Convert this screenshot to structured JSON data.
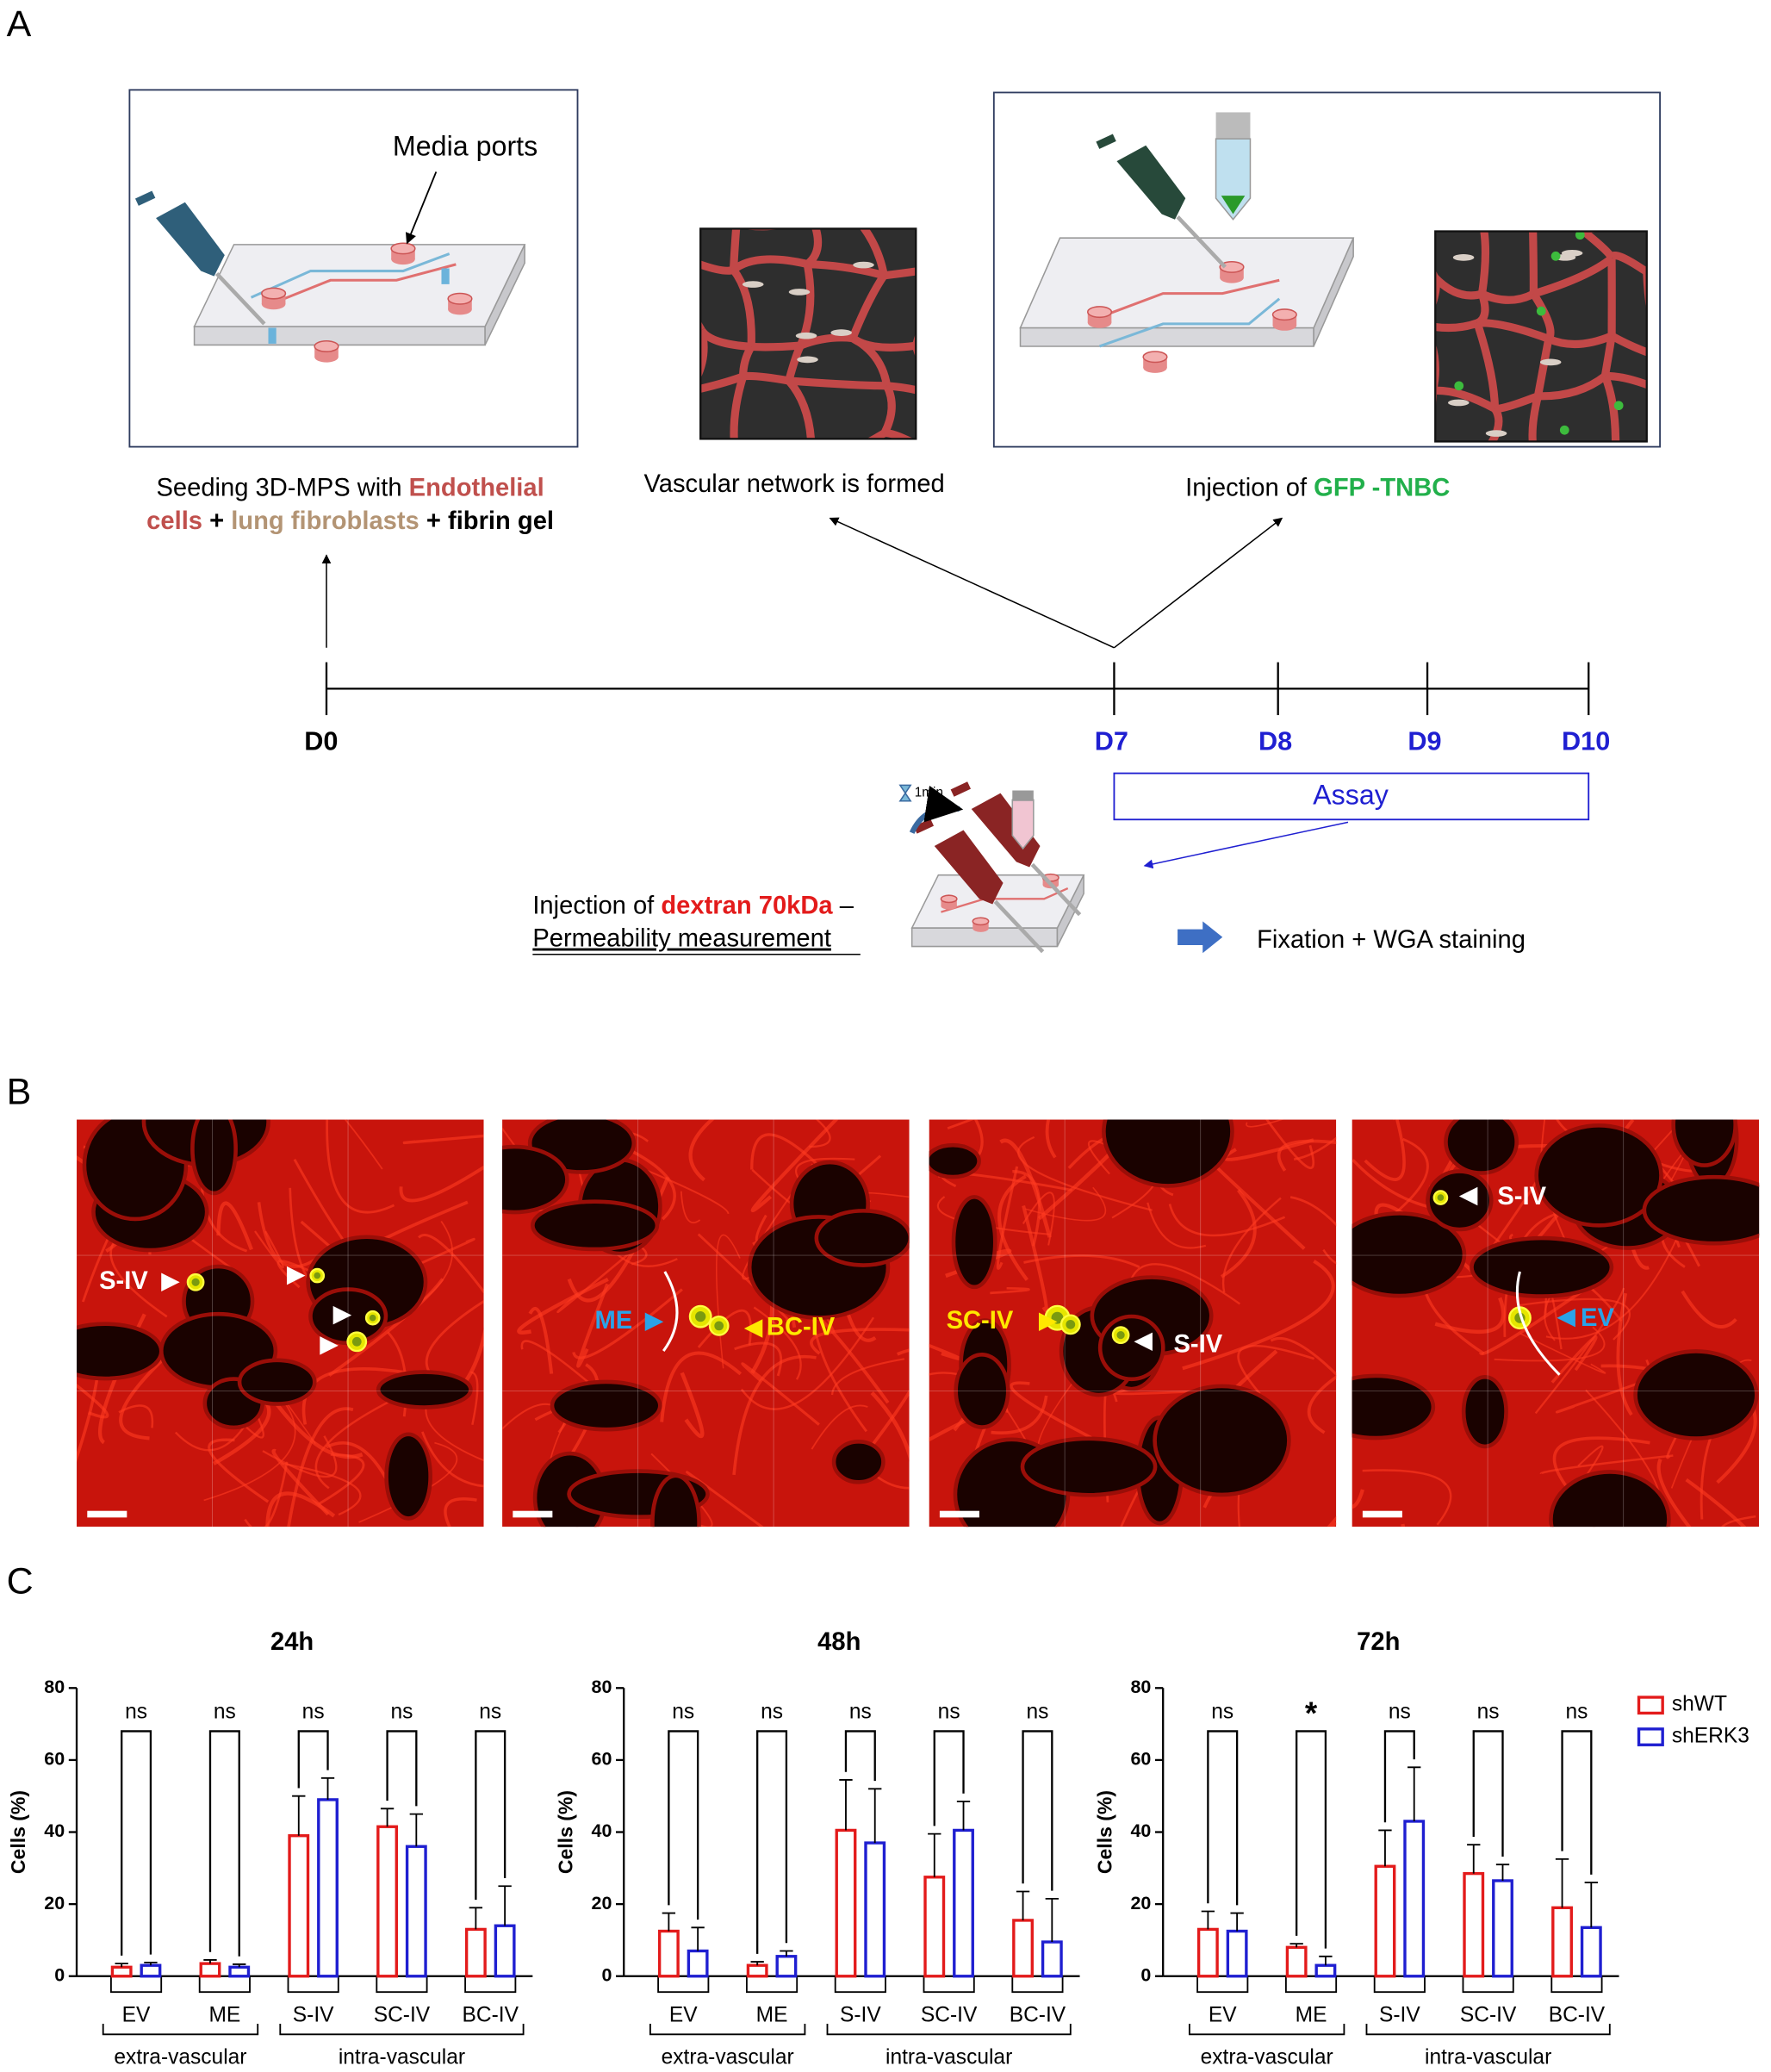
{
  "panel_labels": [
    "A",
    "B",
    "C"
  ],
  "panel_a": {
    "media_ports": "Media ports",
    "seeding_caption": [
      [
        {
          "text": "Seeding 3D-MPS with ",
          "color": "#000000",
          "bold": false
        },
        {
          "text": "Endothelial",
          "color": "#c0504d",
          "bold": true
        }
      ],
      [
        {
          "text": "cells",
          "color": "#c0504d",
          "bold": true
        },
        {
          "text": " + ",
          "color": "#000000",
          "bold": true
        },
        {
          "text": "lung fibroblasts",
          "color": "#b39474",
          "bold": true
        },
        {
          "text": " + fibrin gel",
          "color": "#000000",
          "bold": true
        }
      ]
    ],
    "network_caption": "Vascular network is formed",
    "injection_caption": [
      {
        "text": "Injection of ",
        "color": "#000000",
        "bold": false
      },
      {
        "text": "GFP -TNBC",
        "color": "#22b04b",
        "bold": true
      }
    ],
    "timeline": [
      {
        "label": "D0",
        "color": "#000000"
      },
      {
        "label": "D7",
        "color": "#1f1fd1"
      },
      {
        "label": "D8",
        "color": "#1f1fd1"
      },
      {
        "label": "D9",
        "color": "#1f1fd1"
      },
      {
        "label": "D10",
        "color": "#1f1fd1"
      }
    ],
    "assay": "Assay",
    "timer": "1min",
    "dextran_caption": [
      {
        "text": "Injection of ",
        "color": "#000000",
        "bold": false
      },
      {
        "text": "dextran 70kDa",
        "color": "#e31b1b",
        "bold": true
      },
      {
        "text": " –",
        "color": "#000000",
        "bold": false
      }
    ],
    "permeability": "Permeability measurement",
    "fixation": "Fixation + WGA staining"
  },
  "panel_b": {
    "images": [
      {
        "labels": [
          "S-IV"
        ]
      },
      {
        "labels": [
          "ME",
          "BC-IV"
        ]
      },
      {
        "labels": [
          "SC-IV",
          "S-IV"
        ]
      },
      {
        "labels": [
          "S-IV",
          "EV"
        ]
      }
    ]
  },
  "chart_data": [
    {
      "type": "bar",
      "title": "24h",
      "y_label": "Cells (%)",
      "categories": [
        "EV",
        "ME",
        "S-IV",
        "SC-IV",
        "BC-IV"
      ],
      "groups": [
        "extra-vascular",
        "intra-vascular"
      ],
      "series": [
        {
          "color": "#e31b1b",
          "values": [
            2.5,
            3.5,
            39,
            41.5,
            13
          ],
          "errors": [
            1,
            1,
            11,
            5,
            6
          ]
        },
        {
          "color": "#1f1fd1",
          "values": [
            3,
            2.5,
            49,
            36,
            14
          ],
          "errors": [
            0.8,
            0.8,
            6,
            9,
            11
          ]
        }
      ],
      "annotations": [
        "ns",
        "ns",
        "ns",
        "ns",
        "ns"
      ],
      "ylim": [
        0,
        80
      ],
      "yticks": [
        0,
        20,
        40,
        60,
        80
      ]
    },
    {
      "type": "bar",
      "title": "48h",
      "y_label": "Cells (%)",
      "categories": [
        "EV",
        "ME",
        "S-IV",
        "SC-IV",
        "BC-IV"
      ],
      "groups": [
        "extra-vascular",
        "intra-vascular"
      ],
      "series": [
        {
          "color": "#e31b1b",
          "values": [
            12.5,
            3,
            40.5,
            27.5,
            15.5
          ],
          "errors": [
            5,
            1,
            14,
            12,
            8
          ]
        },
        {
          "color": "#1f1fd1",
          "values": [
            7,
            5.5,
            37,
            40.5,
            9.5
          ],
          "errors": [
            6.5,
            1.5,
            15,
            8,
            12
          ]
        }
      ],
      "annotations": [
        "ns",
        "ns",
        "ns",
        "ns",
        "ns"
      ],
      "ylim": [
        0,
        80
      ],
      "yticks": [
        0,
        20,
        40,
        60,
        80
      ]
    },
    {
      "type": "bar",
      "title": "72h",
      "y_label": "Cells (%)",
      "categories": [
        "EV",
        "ME",
        "S-IV",
        "SC-IV",
        "BC-IV"
      ],
      "groups": [
        "extra-vascular",
        "intra-vascular"
      ],
      "series": [
        {
          "name": "shWT",
          "color": "#e31b1b",
          "values": [
            13,
            8,
            30.5,
            28.5,
            19
          ],
          "errors": [
            5,
            1,
            10,
            8,
            13.5
          ]
        },
        {
          "name": "shERK3",
          "color": "#1f1fd1",
          "values": [
            12.5,
            3,
            43,
            26.5,
            13.5
          ],
          "errors": [
            5,
            2.5,
            15,
            4.5,
            12.5
          ]
        }
      ],
      "annotations": [
        "ns",
        "*",
        "ns",
        "ns",
        "ns"
      ],
      "ylim": [
        0,
        80
      ],
      "yticks": [
        0,
        20,
        40,
        60,
        80
      ]
    }
  ]
}
